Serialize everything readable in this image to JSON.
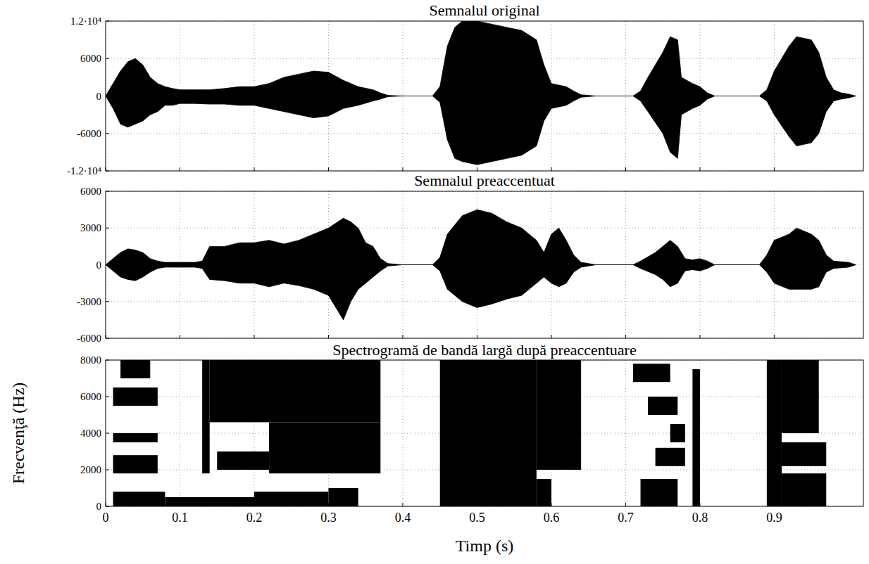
{
  "chart_data": [
    {
      "type": "area",
      "title": "Semnalul original",
      "x": [
        0,
        0.01,
        0.02,
        0.03,
        0.04,
        0.05,
        0.06,
        0.07,
        0.08,
        0.09,
        0.1,
        0.12,
        0.14,
        0.16,
        0.18,
        0.2,
        0.22,
        0.24,
        0.26,
        0.28,
        0.3,
        0.32,
        0.34,
        0.36,
        0.37,
        0.38,
        0.4,
        0.44,
        0.45,
        0.46,
        0.47,
        0.48,
        0.5,
        0.52,
        0.54,
        0.56,
        0.58,
        0.59,
        0.6,
        0.62,
        0.63,
        0.64,
        0.66,
        0.71,
        0.72,
        0.73,
        0.75,
        0.76,
        0.77,
        0.775,
        0.79,
        0.8,
        0.81,
        0.82,
        0.88,
        0.89,
        0.9,
        0.92,
        0.93,
        0.95,
        0.96,
        0.97,
        0.98,
        0.99,
        1.0,
        1.01
      ],
      "series": [
        {
          "color": "#000000",
          "values": [
            0,
            2000,
            4000,
            5500,
            6000,
            5000,
            3000,
            2000,
            1500,
            1200,
            1000,
            1000,
            1000,
            1200,
            1500,
            1500,
            2000,
            3000,
            3500,
            4000,
            3800,
            2500,
            1500,
            1000,
            500,
            100,
            0,
            0,
            1500,
            8000,
            11000,
            12000,
            12000,
            11500,
            11000,
            10500,
            9000,
            5000,
            2000,
            1500,
            800,
            200,
            0,
            0,
            800,
            3000,
            7000,
            9500,
            9000,
            3000,
            2000,
            1500,
            500,
            0,
            0,
            1000,
            4000,
            8000,
            9500,
            9000,
            7000,
            3000,
            1000,
            500,
            300,
            0
          ]
        },
        {
          "color": "#000000",
          "values": [
            0,
            -2000,
            -4500,
            -5000,
            -4500,
            -4000,
            -3000,
            -2500,
            -1500,
            -1500,
            -1200,
            -1200,
            -1300,
            -1300,
            -1500,
            -1500,
            -2000,
            -2500,
            -3000,
            -3500,
            -3200,
            -2000,
            -1500,
            -800,
            -500,
            -100,
            0,
            0,
            -1000,
            -7000,
            -10000,
            -10500,
            -11000,
            -10500,
            -10000,
            -9500,
            -8000,
            -4000,
            -2000,
            -1500,
            -800,
            -200,
            0,
            0,
            -800,
            -2500,
            -6000,
            -9000,
            -10000,
            -3000,
            -2000,
            -1500,
            -500,
            0,
            0,
            -800,
            -3000,
            -6500,
            -8000,
            -7500,
            -6000,
            -2500,
            -800,
            -500,
            -300,
            0
          ]
        }
      ],
      "xlim": [
        0,
        1.02
      ],
      "xticks": [
        0,
        0.1,
        0.2,
        0.3,
        0.4,
        0.5,
        0.6,
        0.7,
        0.8,
        0.9
      ],
      "ylim": [
        -12000,
        12000
      ],
      "yticks": [
        {
          "value": 12000,
          "label": "1.2·10⁴"
        },
        6000,
        0,
        -6000,
        {
          "value": -12000,
          "label": "-1.2·10⁴"
        }
      ],
      "grid": true,
      "tick_labels": "y"
    },
    {
      "type": "area",
      "title": "Semnalul preaccentuat",
      "x": [
        0,
        0.01,
        0.02,
        0.03,
        0.04,
        0.05,
        0.06,
        0.07,
        0.08,
        0.12,
        0.13,
        0.14,
        0.16,
        0.18,
        0.2,
        0.22,
        0.24,
        0.26,
        0.28,
        0.3,
        0.32,
        0.33,
        0.34,
        0.35,
        0.36,
        0.37,
        0.38,
        0.4,
        0.44,
        0.45,
        0.46,
        0.48,
        0.5,
        0.52,
        0.54,
        0.56,
        0.58,
        0.59,
        0.6,
        0.61,
        0.62,
        0.63,
        0.64,
        0.66,
        0.71,
        0.72,
        0.74,
        0.75,
        0.76,
        0.77,
        0.78,
        0.79,
        0.8,
        0.81,
        0.82,
        0.88,
        0.89,
        0.9,
        0.92,
        0.93,
        0.95,
        0.96,
        0.97,
        0.98,
        1.0,
        1.01
      ],
      "series": [
        {
          "color": "#000000",
          "values": [
            0,
            500,
            1000,
            1300,
            1200,
            1000,
            500,
            300,
            200,
            200,
            300,
            1500,
            1500,
            1800,
            1800,
            2000,
            1700,
            2000,
            2500,
            3000,
            3800,
            3500,
            3000,
            1800,
            1500,
            500,
            100,
            0,
            0,
            600,
            2500,
            4000,
            4500,
            4200,
            3500,
            3000,
            2000,
            1000,
            2500,
            3000,
            2000,
            800,
            200,
            0,
            0,
            300,
            1000,
            1500,
            2000,
            1500,
            500,
            400,
            500,
            300,
            0,
            0,
            800,
            2000,
            2500,
            3000,
            2500,
            2000,
            800,
            300,
            200,
            0
          ]
        },
        {
          "color": "#000000",
          "values": [
            0,
            -500,
            -1000,
            -1200,
            -1300,
            -1000,
            -600,
            -300,
            -200,
            -200,
            -300,
            -1200,
            -1300,
            -1500,
            -1500,
            -1800,
            -1500,
            -1700,
            -2000,
            -2500,
            -4500,
            -3000,
            -2000,
            -1500,
            -1000,
            -500,
            -100,
            0,
            0,
            -500,
            -2000,
            -3000,
            -3500,
            -3200,
            -2800,
            -2500,
            -1500,
            -1000,
            -1500,
            -1800,
            -1500,
            -600,
            -200,
            0,
            0,
            -300,
            -800,
            -1200,
            -1800,
            -1500,
            -500,
            -400,
            -500,
            -300,
            0,
            0,
            -600,
            -1500,
            -2000,
            -2000,
            -2000,
            -1800,
            -600,
            -300,
            -200,
            0
          ]
        }
      ],
      "xlim": [
        0,
        1.02
      ],
      "xticks": [
        0,
        0.1,
        0.2,
        0.3,
        0.4,
        0.5,
        0.6,
        0.7,
        0.8,
        0.9
      ],
      "ylim": [
        -6000,
        6000
      ],
      "yticks": [
        6000,
        3000,
        0,
        -3000,
        -6000
      ],
      "grid": true,
      "tick_labels": "y"
    },
    {
      "type": "heatmap",
      "title": "Spectrogramă de bandă largă după preaccentuare",
      "xlabel": "Timp (s)",
      "ylabel": "Frecvenţă (Hz)",
      "color": "#000000",
      "cells": [
        [
          0.01,
          0.08,
          0,
          800
        ],
        [
          0.08,
          0.2,
          0,
          500
        ],
        [
          0.2,
          0.3,
          0,
          800
        ],
        [
          0.3,
          0.34,
          0,
          1000
        ],
        [
          0.01,
          0.07,
          1800,
          2800
        ],
        [
          0.01,
          0.07,
          3500,
          4000
        ],
        [
          0.01,
          0.07,
          5500,
          6500
        ],
        [
          0.02,
          0.06,
          7000,
          8000
        ],
        [
          0.13,
          0.14,
          1800,
          8000
        ],
        [
          0.14,
          0.37,
          4600,
          8000
        ],
        [
          0.15,
          0.22,
          2000,
          3000
        ],
        [
          0.22,
          0.37,
          1800,
          4600
        ],
        [
          0.45,
          0.58,
          0,
          8000
        ],
        [
          0.58,
          0.64,
          2000,
          8000
        ],
        [
          0.58,
          0.6,
          0,
          1500
        ],
        [
          0.72,
          0.77,
          0,
          1500
        ],
        [
          0.71,
          0.76,
          6800,
          7800
        ],
        [
          0.73,
          0.77,
          5000,
          6000
        ],
        [
          0.74,
          0.78,
          2200,
          3200
        ],
        [
          0.76,
          0.78,
          3500,
          4500
        ],
        [
          0.79,
          0.8,
          0,
          7500
        ],
        [
          0.89,
          0.91,
          0,
          8000
        ],
        [
          0.91,
          0.97,
          0,
          1800
        ],
        [
          0.91,
          0.97,
          2200,
          3500
        ],
        [
          0.91,
          0.96,
          4000,
          8000
        ]
      ],
      "xlim": [
        0,
        1.02
      ],
      "xticks": [
        0,
        0.1,
        0.2,
        0.3,
        0.4,
        0.5,
        0.6,
        0.7,
        0.8,
        0.9
      ],
      "ylim": [
        0,
        8000
      ],
      "yticks": [
        0,
        2000,
        4000,
        6000,
        8000
      ],
      "grid": true
    }
  ]
}
